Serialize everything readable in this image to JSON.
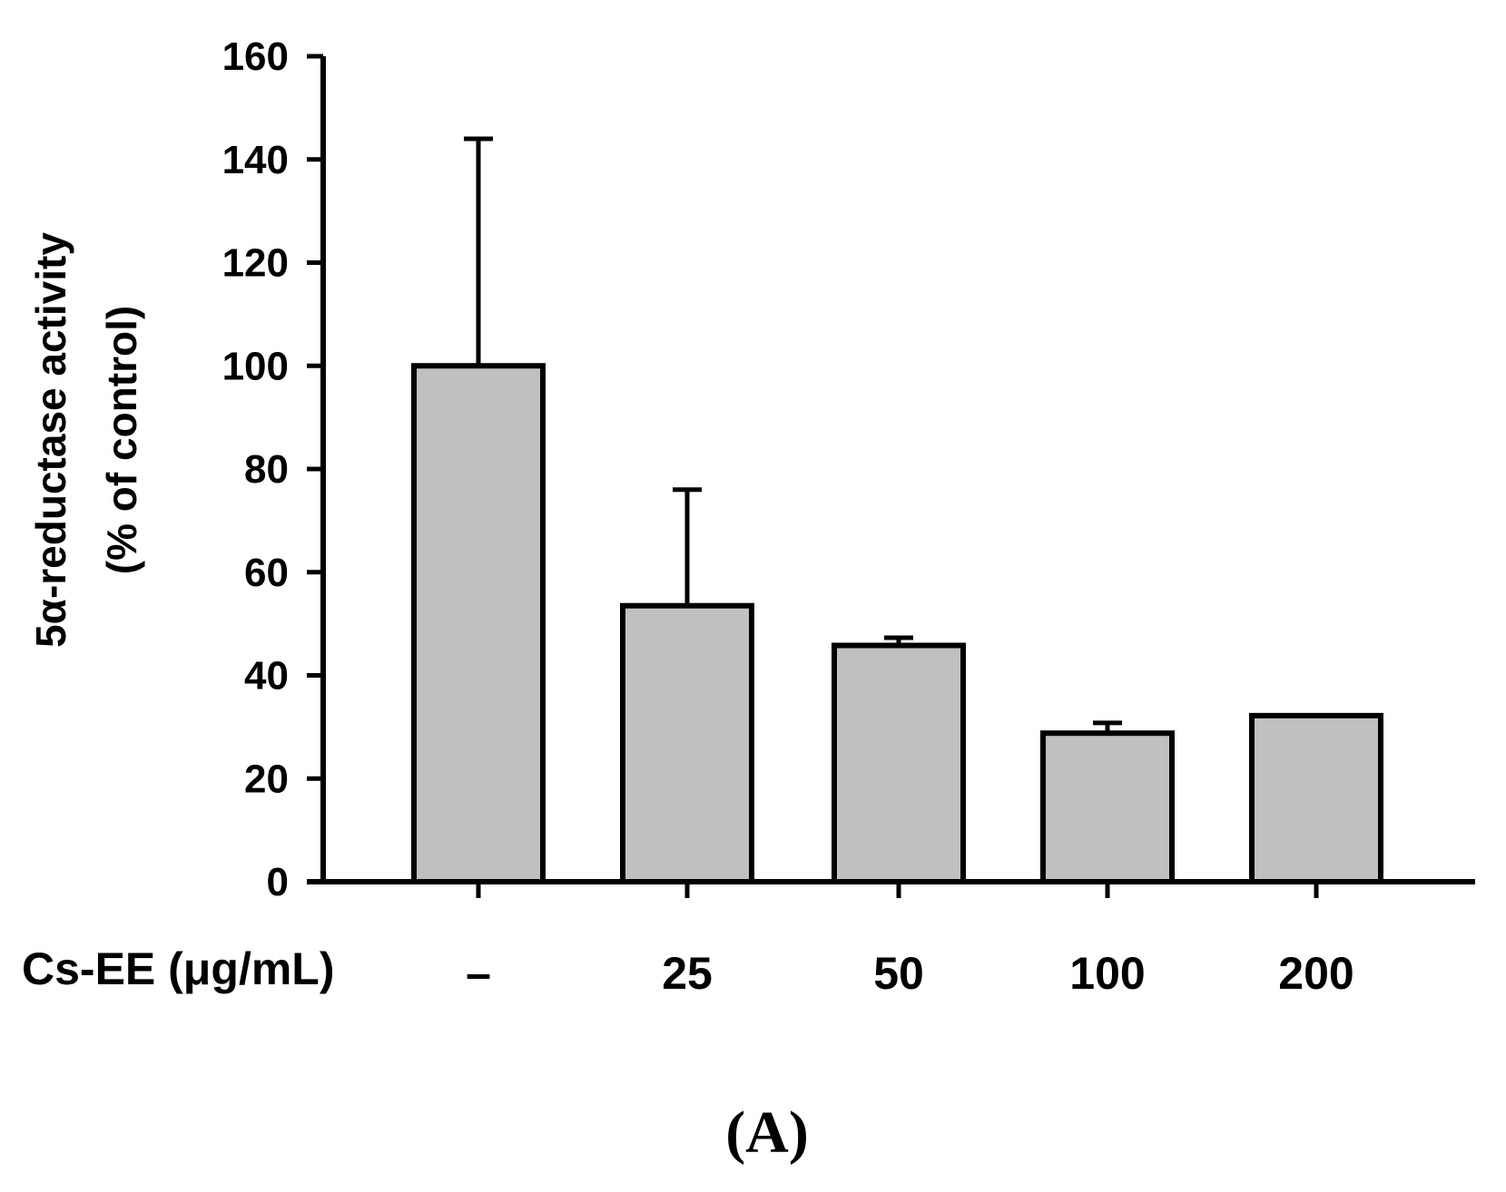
{
  "chart_data": {
    "type": "bar",
    "title": "",
    "ylabel_line1": "5α-reductase activity",
    "ylabel_line2": "(% of control)",
    "xlabel": "Cs-EE (μg/mL)",
    "categories": [
      "–",
      "25",
      "50",
      "100",
      "200"
    ],
    "values": [
      100,
      53.5,
      45.8,
      28.8,
      32.2
    ],
    "error_upper": [
      44,
      22.5,
      1.5,
      2.0,
      0
    ],
    "ylim": [
      0,
      160
    ],
    "yticks": [
      0,
      20,
      40,
      60,
      80,
      100,
      120,
      140,
      160
    ],
    "grid": false,
    "bar_color": "#c0c0c0",
    "edge_color": "#000000",
    "panel_label": "(A)"
  }
}
